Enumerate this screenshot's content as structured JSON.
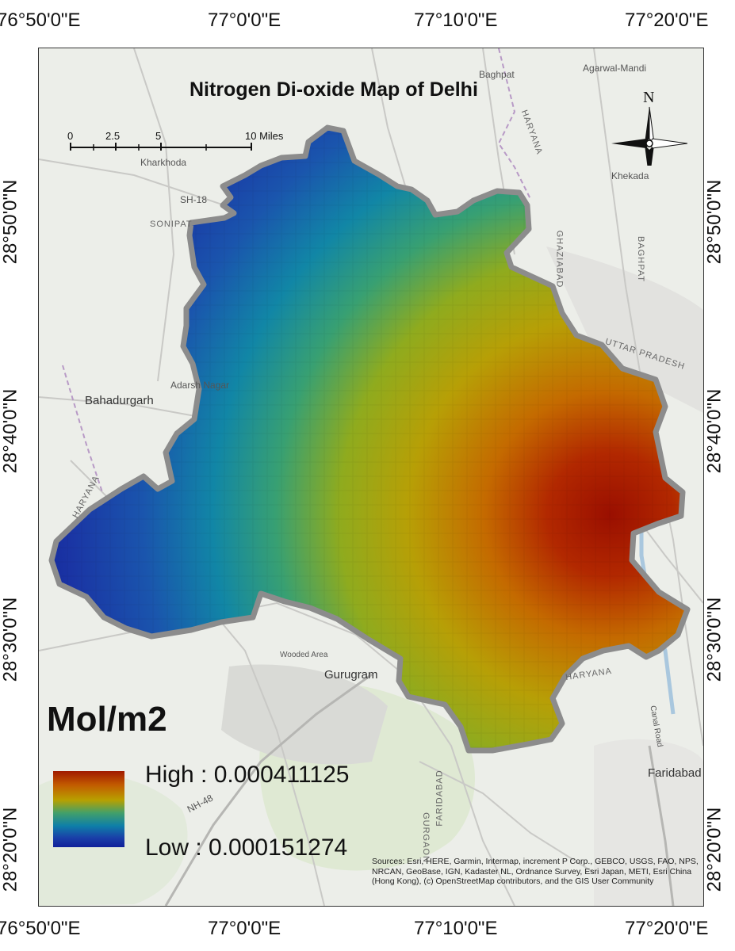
{
  "map": {
    "title": "Nitrogen Di-oxide Map of Delhi",
    "unit": "Mol/m2",
    "legend": {
      "high_label": "High : 0.000411125",
      "low_label": "Low : 0.000151274",
      "high_color": "#a01a00",
      "low_color": "#10209a"
    },
    "attribution": "Sources: Esri, HERE, Garmin, Intermap, increment P Corp., GEBCO, USGS, FAO, NPS, NRCAN, GeoBase, IGN, Kadaster NL, Ordnance Survey, Esri Japan, METI, Esri China (Hong Kong), (c) OpenStreetMap contributors, and the GIS User Community",
    "north_label": "N",
    "scale_bar": {
      "labels": [
        "0",
        "2.5",
        "5",
        "10 Miles"
      ]
    },
    "longitude_labels": [
      "76°50'0\"E",
      "77°0'0\"E",
      "77°10'0\"E",
      "77°20'0\"E"
    ],
    "latitude_labels": [
      "28°50'0\"N",
      "28°40'0\"N",
      "28°30'0\"N",
      "28°20'0\"N"
    ],
    "basemap_places": {
      "baghpat": "Baghpat",
      "agarwal_mandi": "Agarwal-Mandi",
      "haryana_n": "HARYANA",
      "kharkhoda": "Kharkhoda",
      "sonipat": "SONIPAT",
      "sh18": "SH-18",
      "khekada": "Khekada",
      "ghaziabad": "GHAZIABAD",
      "baghpat_district": "BAGHPAT",
      "uttar_pradesh": "UTTAR PRADESH",
      "bahadurgarh": "Bahadurgarh",
      "adarsh_nagar": "Adarsh Nagar",
      "haryana_w": "HARYANA",
      "wooded_area": "Wooded Area",
      "gurugram": "Gurugram",
      "haryana_se": "HARYANA",
      "faridabad": "Faridabad",
      "faridabad_district": "FARIDABAD",
      "gurgaon_district": "GURGAON",
      "nh48": "NH-48",
      "canal_road": "Canal Road"
    },
    "colors": {
      "boundary": "#8c8c8c",
      "ramp_high": "#a01a00",
      "ramp_mid_high": "#c25a00",
      "ramp_mid": "#b8a000",
      "ramp_mid_low": "#42a06a",
      "ramp_teal": "#0e7fa8",
      "ramp_low": "#1a3ea8",
      "ramp_lowest": "#10209a"
    }
  }
}
